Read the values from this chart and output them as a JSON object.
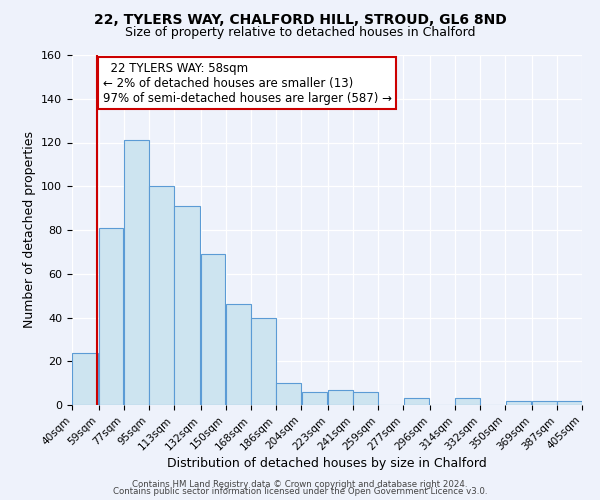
{
  "title": "22, TYLERS WAY, CHALFORD HILL, STROUD, GL6 8ND",
  "subtitle": "Size of property relative to detached houses in Chalford",
  "xlabel": "Distribution of detached houses by size in Chalford",
  "ylabel": "Number of detached properties",
  "annotation_line1": "22 TYLERS WAY: 58sqm",
  "annotation_line2": "← 2% of detached houses are smaller (13)",
  "annotation_line3": "97% of semi-detached houses are larger (587) →",
  "bar_left_edges": [
    40,
    59,
    77,
    95,
    113,
    132,
    150,
    168,
    186,
    204,
    223,
    241,
    259,
    277,
    296,
    314,
    332,
    350,
    369,
    387
  ],
  "bar_widths": [
    19,
    18,
    18,
    18,
    19,
    18,
    18,
    18,
    18,
    19,
    18,
    18,
    18,
    19,
    18,
    18,
    18,
    19,
    18,
    18
  ],
  "bar_heights": [
    24,
    81,
    121,
    100,
    91,
    69,
    46,
    40,
    10,
    6,
    7,
    6,
    0,
    3,
    0,
    3,
    0,
    2,
    2,
    2
  ],
  "bar_color": "#cde4f0",
  "bar_edge_color": "#5b9bd5",
  "marker_x": 58,
  "marker_color": "#cc0000",
  "ylim": [
    0,
    160
  ],
  "yticks": [
    0,
    20,
    40,
    60,
    80,
    100,
    120,
    140,
    160
  ],
  "xtick_labels": [
    "40sqm",
    "59sqm",
    "77sqm",
    "95sqm",
    "113sqm",
    "132sqm",
    "150sqm",
    "168sqm",
    "186sqm",
    "204sqm",
    "223sqm",
    "241sqm",
    "259sqm",
    "277sqm",
    "296sqm",
    "314sqm",
    "332sqm",
    "350sqm",
    "369sqm",
    "387sqm",
    "405sqm"
  ],
  "xtick_positions": [
    40,
    59,
    77,
    95,
    113,
    132,
    150,
    168,
    186,
    204,
    223,
    241,
    259,
    277,
    296,
    314,
    332,
    350,
    369,
    387,
    405
  ],
  "bg_color": "#eef2fb",
  "footer_line1": "Contains HM Land Registry data © Crown copyright and database right 2024.",
  "footer_line2": "Contains public sector information licensed under the Open Government Licence v3.0.",
  "title_fontsize": 10,
  "subtitle_fontsize": 9
}
